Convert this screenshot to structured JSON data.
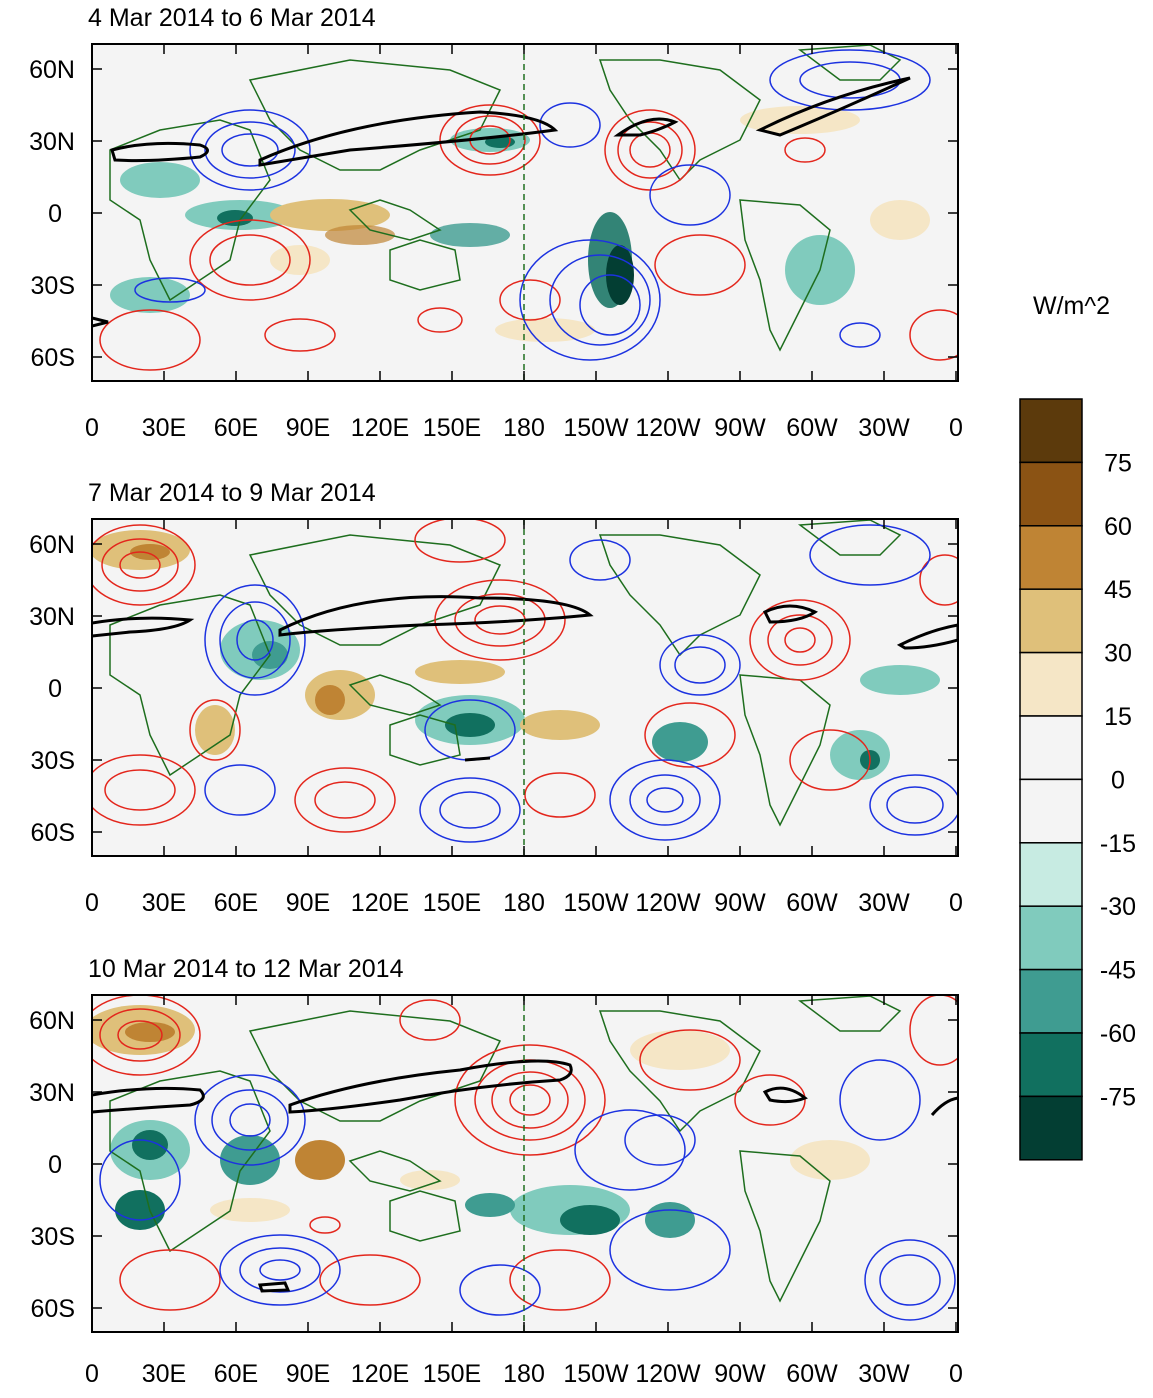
{
  "panels": [
    {
      "title": "4 Mar 2014 to 6 Mar 2014"
    },
    {
      "title": "7 Mar 2014 to 9 Mar 2014"
    },
    {
      "title": "10 Mar 2014 to 12 Mar 2014"
    }
  ],
  "axes": {
    "x_ticks": [
      "0",
      "30E",
      "60E",
      "90E",
      "120E",
      "150E",
      "180",
      "150W",
      "120W",
      "90W",
      "60W",
      "30W",
      "0"
    ],
    "y_ticks": [
      "60N",
      "30N",
      "0",
      "30S",
      "60S"
    ],
    "lon_range": [
      0,
      360
    ],
    "lat_range": [
      -70,
      70
    ]
  },
  "colorbar": {
    "units": "W/m^2",
    "labels": [
      "75",
      "60",
      "45",
      "30",
      "15",
      "0",
      "-15",
      "-30",
      "-45",
      "-60",
      "-75"
    ],
    "colors": [
      "#5c3a0c",
      "#8b5314",
      "#bf8434",
      "#dfc07a",
      "#f5e6c6",
      "#f4f4f4",
      "#f4f4f4",
      "#c7ebe2",
      "#80cbbd",
      "#3f9c91",
      "#11705f",
      "#033e33"
    ]
  },
  "colors": {
    "land_outline": "#1e6e1e",
    "positive_contour": "#e3261c",
    "negative_contour": "#1c32e0",
    "jet_contour": "#000000",
    "date_line": "#1e6e1e"
  }
}
